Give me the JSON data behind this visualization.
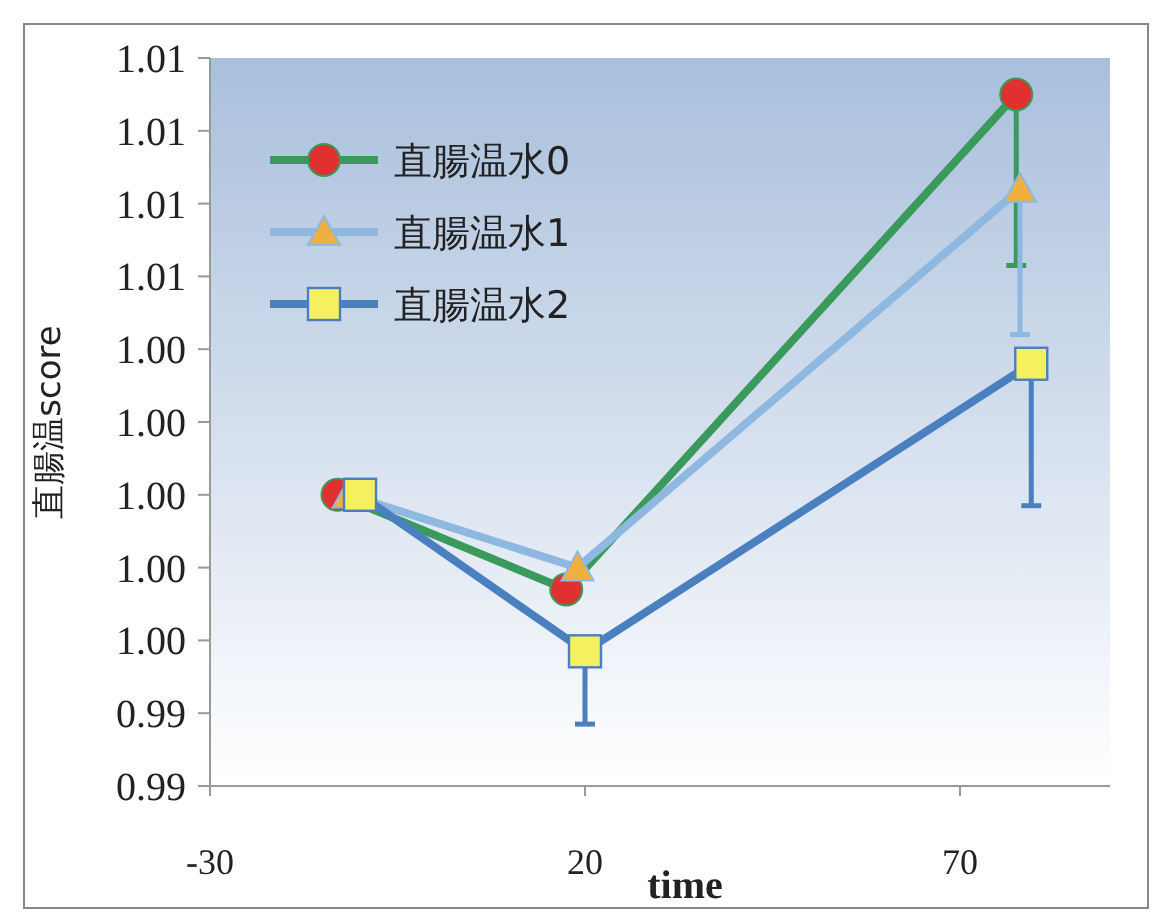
{
  "chart_data": {
    "type": "line",
    "xlabel": "time",
    "ylabel": "直腸温score",
    "xlim": [
      -30,
      90
    ],
    "xticks": [
      -30,
      20,
      70
    ],
    "ylim": [
      0.992,
      1.012
    ],
    "yticks": [
      {
        "value": 0.992,
        "label": "0.99"
      },
      {
        "value": 0.994,
        "label": "0.99"
      },
      {
        "value": 0.996,
        "label": "1.00"
      },
      {
        "value": 0.998,
        "label": "1.00"
      },
      {
        "value": 1.0,
        "label": "1.00"
      },
      {
        "value": 1.002,
        "label": "1.00"
      },
      {
        "value": 1.004,
        "label": "1.00"
      },
      {
        "value": 1.006,
        "label": "1.01"
      },
      {
        "value": 1.008,
        "label": "1.01"
      },
      {
        "value": 1.01,
        "label": "1.01"
      },
      {
        "value": 1.012,
        "label": "1.01"
      }
    ],
    "legend": "top left",
    "grid": false,
    "series": [
      {
        "name": "直腸温水0",
        "color": "#3a9a5b",
        "colors": [
          "#e03030",
          "#e03030",
          "#e03030"
        ],
        "marker": "circle",
        "x": [
          -13,
          17.5,
          77.5
        ],
        "values": [
          1.0,
          0.9974,
          1.011
        ],
        "errors": [
          null,
          null,
          [
            1.0063,
            1.011
          ]
        ]
      },
      {
        "name": "直腸温水1",
        "color": "#8fb8e0",
        "colors": [
          "#f0b040",
          "#f0b040",
          "#f0b040"
        ],
        "marker": "triangle",
        "x": [
          -11.5,
          19,
          78
        ],
        "values": [
          1.0,
          0.998,
          1.0084
        ],
        "errors": [
          null,
          null,
          [
            1.0044,
            1.0084
          ]
        ]
      },
      {
        "name": "直腸温水2",
        "color": "#4a7fc0",
        "colors": [
          "#f5f060",
          "#f5f060",
          "#f5f060"
        ],
        "marker": "square",
        "x": [
          -10,
          20,
          79.5
        ],
        "values": [
          1.0,
          0.9957,
          1.0036
        ],
        "errors": [
          null,
          [
            0.9937,
            0.9957
          ],
          [
            0.9997,
            1.0036
          ]
        ]
      }
    ]
  }
}
